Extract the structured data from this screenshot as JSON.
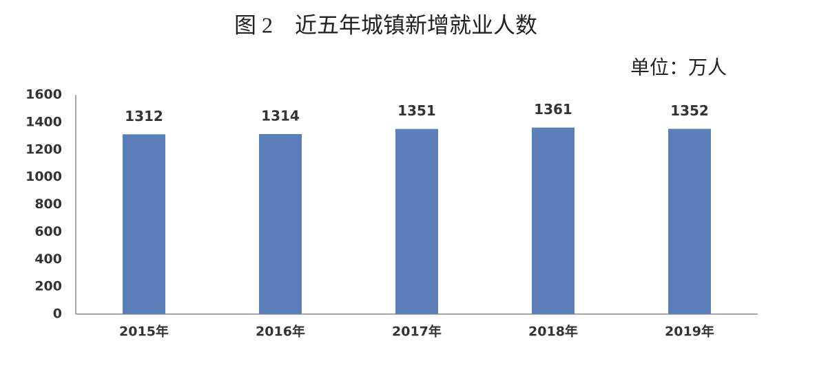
{
  "chart_data": {
    "type": "bar",
    "title": "图 2　近五年城镇新增就业人数",
    "unit": "单位：万人",
    "categories": [
      "2015年",
      "2016年",
      "2017年",
      "2018年",
      "2019年"
    ],
    "values": [
      1312,
      1314,
      1351,
      1361,
      1352
    ],
    "color": "#5b7fb9",
    "ylim": [
      0,
      1600
    ],
    "yticks": [
      0,
      200,
      400,
      600,
      800,
      1000,
      1200,
      1400,
      1600
    ],
    "grid": false
  }
}
